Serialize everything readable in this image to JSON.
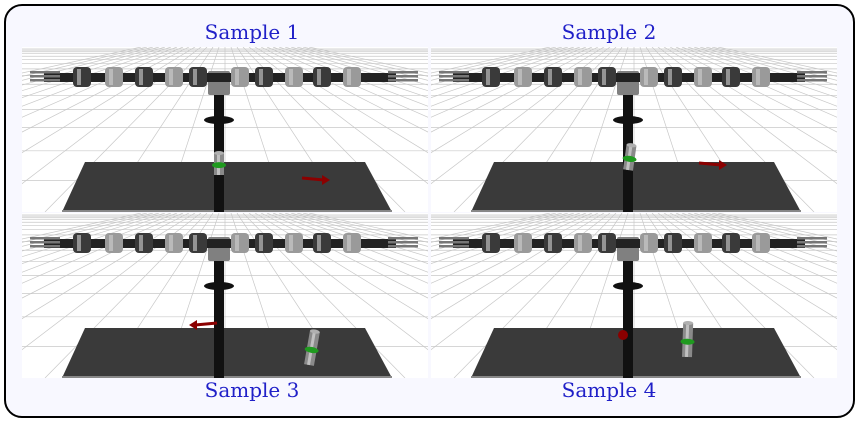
{
  "samples": [
    {
      "label": "Sample 1",
      "cylinder": "upright-center",
      "marker": "arrow-right"
    },
    {
      "label": "Sample 2",
      "cylinder": "upright-near-pole",
      "marker": "arrow-right"
    },
    {
      "label": "Sample 3",
      "cylinder": "tilted-right",
      "marker": "arrow-left"
    },
    {
      "label": "Sample 4",
      "cylinder": "upright-right",
      "marker": "sphere"
    }
  ],
  "colors": {
    "label": "#2020c8",
    "frame_bg": "#f8f8ff",
    "table": "#3a3a3a",
    "pole": "#111111",
    "marker": "#8b0000",
    "axis_green": "#1f9a1f"
  }
}
